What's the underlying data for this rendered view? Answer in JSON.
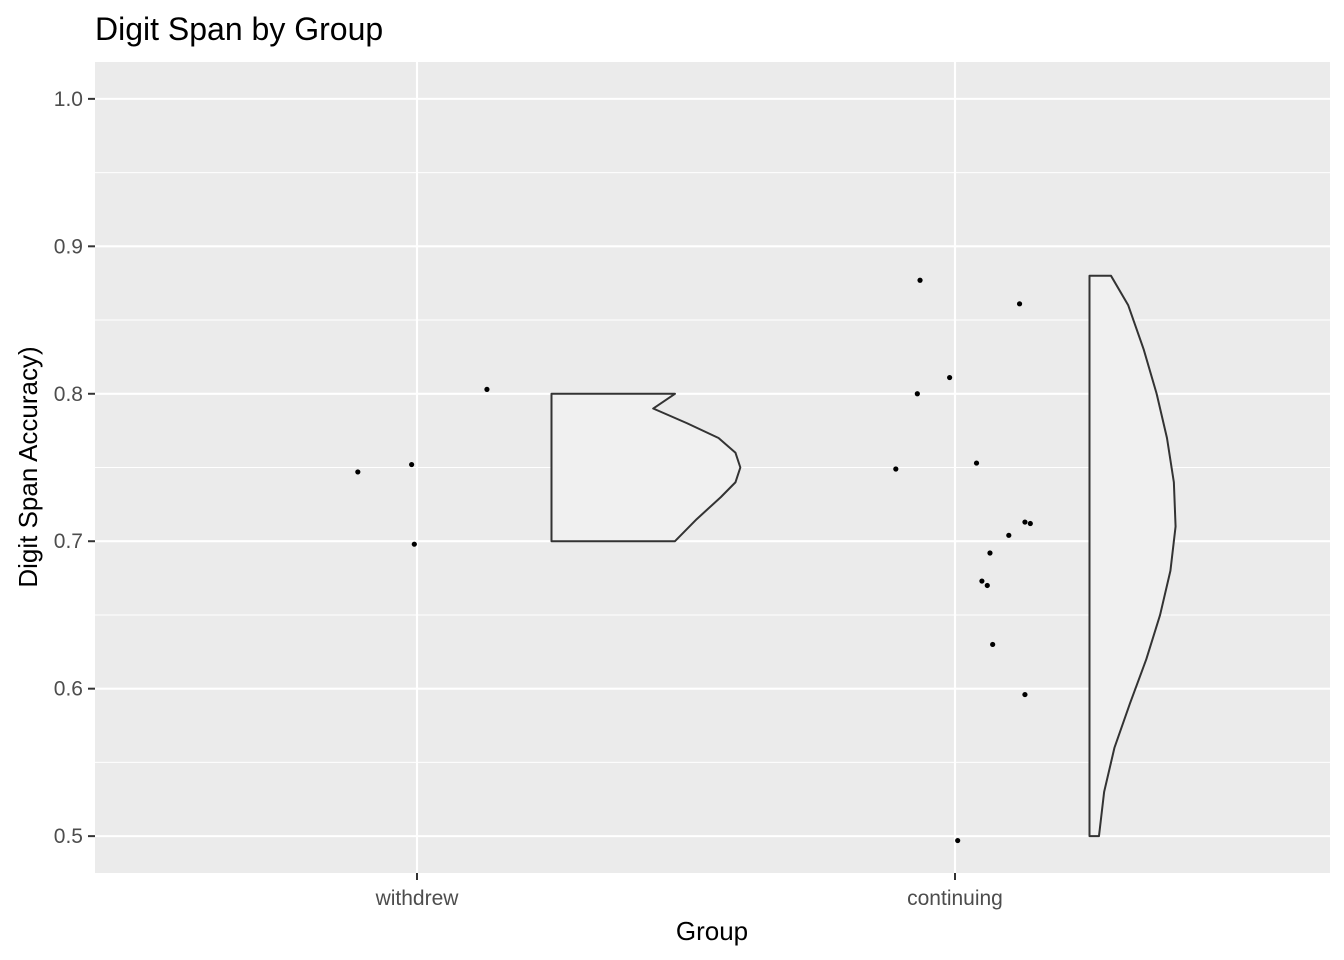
{
  "chart_data": {
    "type": "scatter",
    "subtype": "half-violin with jittered points (raincloud)",
    "title": "Digit Span by Group",
    "xlabel": "Group",
    "ylabel": "Digit Span Accuracy)",
    "categories": [
      "withdrew",
      "continuing"
    ],
    "ylim": [
      0.475,
      1.025
    ],
    "yticks": [
      0.5,
      0.6,
      0.7,
      0.8,
      0.9,
      1.0
    ],
    "ytick_labels": [
      "0.5",
      "0.6",
      "0.7",
      "0.8",
      "0.9",
      "1.0"
    ],
    "grid": true,
    "legend": "none",
    "colors": {
      "panel": "#ebebeb",
      "gridline": "#ffffff",
      "violin_fill": "#f0f0f0",
      "violin_outline": "#333333",
      "point": "#000000",
      "tick_label": "#4d4d4d"
    },
    "series": [
      {
        "category": "withdrew",
        "points": [
          {
            "x_offset": -0.11,
            "y": 0.747
          },
          {
            "x_offset": -0.01,
            "y": 0.752
          },
          {
            "x_offset": -0.005,
            "y": 0.698
          },
          {
            "x_offset": 0.13,
            "y": 0.803
          }
        ],
        "violin": {
          "x_offset_start": 0.25,
          "x_offset_max": 0.7,
          "profile": [
            [
              0.7,
              0.51
            ],
            [
              0.715,
              0.6
            ],
            [
              0.73,
              0.7
            ],
            [
              0.74,
              0.76
            ],
            [
              0.75,
              0.78
            ],
            [
              0.76,
              0.76
            ],
            [
              0.77,
              0.69
            ],
            [
              0.78,
              0.56
            ],
            [
              0.79,
              0.42
            ],
            [
              0.8,
              0.51
            ]
          ]
        }
      },
      {
        "category": "continuing",
        "points": [
          {
            "x_offset": -0.11,
            "y": 0.749
          },
          {
            "x_offset": -0.07,
            "y": 0.8
          },
          {
            "x_offset": -0.065,
            "y": 0.877
          },
          {
            "x_offset": -0.01,
            "y": 0.811
          },
          {
            "x_offset": 0.005,
            "y": 0.497
          },
          {
            "x_offset": 0.04,
            "y": 0.753
          },
          {
            "x_offset": 0.05,
            "y": 0.673
          },
          {
            "x_offset": 0.06,
            "y": 0.67
          },
          {
            "x_offset": 0.065,
            "y": 0.692
          },
          {
            "x_offset": 0.07,
            "y": 0.63
          },
          {
            "x_offset": 0.1,
            "y": 0.704
          },
          {
            "x_offset": 0.12,
            "y": 0.861
          },
          {
            "x_offset": 0.13,
            "y": 0.713
          },
          {
            "x_offset": 0.14,
            "y": 0.712
          },
          {
            "x_offset": 0.13,
            "y": 0.596
          }
        ],
        "violin": {
          "x_offset_start": 0.25,
          "x_offset_max": 0.41,
          "profile": [
            [
              0.5,
              0.11
            ],
            [
              0.53,
              0.17
            ],
            [
              0.56,
              0.29
            ],
            [
              0.59,
              0.47
            ],
            [
              0.62,
              0.66
            ],
            [
              0.65,
              0.82
            ],
            [
              0.68,
              0.94
            ],
            [
              0.71,
              1.0
            ],
            [
              0.74,
              0.98
            ],
            [
              0.77,
              0.9
            ],
            [
              0.8,
              0.78
            ],
            [
              0.83,
              0.63
            ],
            [
              0.86,
              0.45
            ],
            [
              0.88,
              0.25
            ]
          ]
        }
      }
    ]
  }
}
